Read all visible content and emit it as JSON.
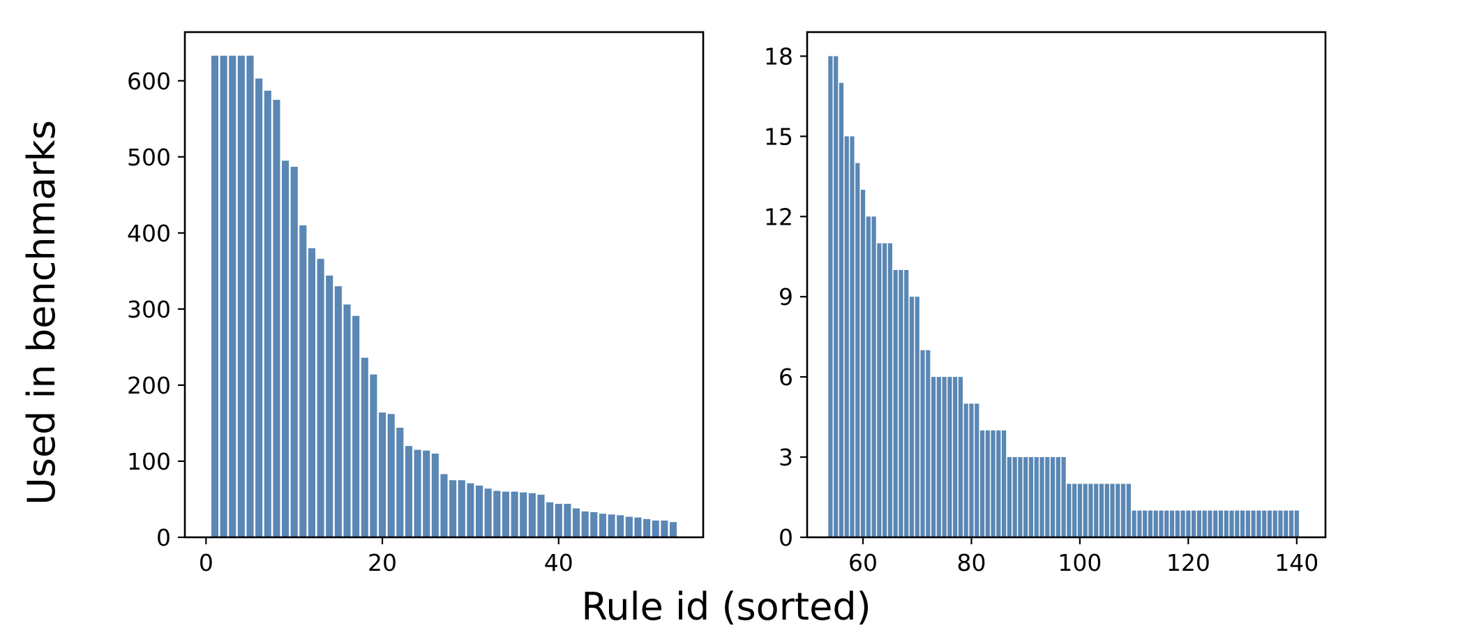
{
  "figure": {
    "ylabel": "Used in benchmarks",
    "xlabel": "Rule id (sorted)"
  },
  "chart_data": [
    {
      "type": "bar",
      "bar_color": "#5a87b4",
      "xlim": [
        -2.4,
        56.4
      ],
      "ylim": [
        0,
        664
      ],
      "xticks": [
        0,
        20,
        40
      ],
      "yticks": [
        0,
        100,
        200,
        300,
        400,
        500,
        600
      ],
      "x": [
        1,
        2,
        3,
        4,
        5,
        6,
        7,
        8,
        9,
        10,
        11,
        12,
        13,
        14,
        15,
        16,
        17,
        18,
        19,
        20,
        21,
        22,
        23,
        24,
        25,
        26,
        27,
        28,
        29,
        30,
        31,
        32,
        33,
        34,
        35,
        36,
        37,
        38,
        39,
        40,
        41,
        42,
        43,
        44,
        45,
        46,
        47,
        48,
        49,
        50,
        51,
        52,
        53
      ],
      "values": [
        633,
        633,
        633,
        633,
        633,
        603,
        587,
        575,
        495,
        487,
        410,
        380,
        366,
        344,
        330,
        306,
        291,
        236,
        214,
        164,
        162,
        144,
        120,
        115,
        114,
        110,
        83,
        75,
        75,
        71,
        68,
        64,
        61,
        60,
        60,
        59,
        58,
        56,
        46,
        44,
        44,
        38,
        34,
        33,
        31,
        30,
        29,
        27,
        26,
        24,
        22,
        22,
        20
      ]
    },
    {
      "type": "bar",
      "bar_color": "#5a87b4",
      "xlim": [
        49.7,
        145.3
      ],
      "ylim": [
        0,
        18.9
      ],
      "xticks": [
        60,
        80,
        100,
        120,
        140
      ],
      "yticks": [
        0,
        3,
        6,
        9,
        12,
        15,
        18
      ],
      "x": [
        54,
        55,
        56,
        57,
        58,
        59,
        60,
        61,
        62,
        63,
        64,
        65,
        66,
        67,
        68,
        69,
        70,
        71,
        72,
        73,
        74,
        75,
        76,
        77,
        78,
        79,
        80,
        81,
        82,
        83,
        84,
        85,
        86,
        87,
        88,
        89,
        90,
        91,
        92,
        93,
        94,
        95,
        96,
        97,
        98,
        99,
        100,
        101,
        102,
        103,
        104,
        105,
        106,
        107,
        108,
        109,
        110,
        111,
        112,
        113,
        114,
        115,
        116,
        117,
        118,
        119,
        120,
        121,
        122,
        123,
        124,
        125,
        126,
        127,
        128,
        129,
        130,
        131,
        132,
        133,
        134,
        135,
        136,
        137,
        138,
        139,
        140
      ],
      "values": [
        18,
        18,
        17,
        15,
        15,
        14,
        13,
        12,
        12,
        11,
        11,
        11,
        10,
        10,
        10,
        9,
        9,
        7,
        7,
        6,
        6,
        6,
        6,
        6,
        6,
        5,
        5,
        5,
        4,
        4,
        4,
        4,
        4,
        3,
        3,
        3,
        3,
        3,
        3,
        3,
        3,
        3,
        3,
        3,
        2,
        2,
        2,
        2,
        2,
        2,
        2,
        2,
        2,
        2,
        2,
        2,
        1,
        1,
        1,
        1,
        1,
        1,
        1,
        1,
        1,
        1,
        1,
        1,
        1,
        1,
        1,
        1,
        1,
        1,
        1,
        1,
        1,
        1,
        1,
        1,
        1,
        1,
        1,
        1,
        1,
        1,
        1
      ]
    }
  ]
}
